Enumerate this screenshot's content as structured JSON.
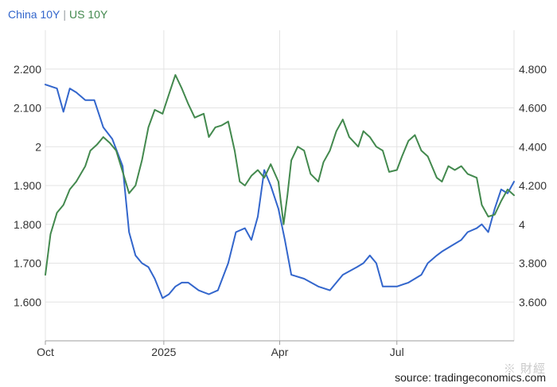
{
  "legend": {
    "china_label": "China 10Y",
    "separator": "|",
    "us_label": "US 10Y"
  },
  "source_text": "source: tradingeconomics.com",
  "watermark_text": "※ 財經",
  "colors": {
    "china": "#3366cc",
    "us": "#43894e",
    "grid": "#e3e3e3",
    "axis": "#9e9e9e"
  },
  "chart_data": {
    "type": "line",
    "title": "",
    "xlabel": "",
    "ylabel_left": "",
    "ylabel_right": "",
    "x_ticks": [
      "Oct",
      "2025",
      "Apr",
      "Jul"
    ],
    "x_tick_dates": [
      "2024-10-01",
      "2025-01-01",
      "2025-04-01",
      "2025-07-01"
    ],
    "x_range": [
      "2024-10-01",
      "2025-09-30"
    ],
    "y_left": {
      "range": [
        1.5,
        2.3
      ],
      "ticks": [
        "1.600",
        "1.700",
        "1.800",
        "1.900",
        "2",
        "2.100",
        "2.200"
      ]
    },
    "y_right": {
      "range": [
        3.4,
        5.0
      ],
      "ticks": [
        "3.600",
        "3.800",
        "4",
        "4.200",
        "4.400",
        "4.600",
        "4.800"
      ]
    },
    "grid": true,
    "legend_position": "top-left",
    "series": [
      {
        "name": "China 10Y",
        "axis": "left",
        "x": [
          "2024-10-01",
          "2024-10-10",
          "2024-10-15",
          "2024-10-20",
          "2024-10-25",
          "2024-11-01",
          "2024-11-08",
          "2024-11-15",
          "2024-11-22",
          "2024-11-30",
          "2024-12-05",
          "2024-12-10",
          "2024-12-15",
          "2024-12-20",
          "2024-12-25",
          "2024-12-31",
          "2025-01-05",
          "2025-01-10",
          "2025-01-15",
          "2025-01-20",
          "2025-01-28",
          "2025-02-05",
          "2025-02-12",
          "2025-02-20",
          "2025-02-26",
          "2025-03-05",
          "2025-03-10",
          "2025-03-15",
          "2025-03-20",
          "2025-03-25",
          "2025-03-31",
          "2025-04-05",
          "2025-04-10",
          "2025-04-20",
          "2025-05-01",
          "2025-05-10",
          "2025-05-15",
          "2025-05-20",
          "2025-05-31",
          "2025-06-05",
          "2025-06-10",
          "2025-06-15",
          "2025-06-20",
          "2025-06-25",
          "2025-07-01",
          "2025-07-10",
          "2025-07-20",
          "2025-07-25",
          "2025-08-01",
          "2025-08-05",
          "2025-08-10",
          "2025-08-15",
          "2025-08-20",
          "2025-08-25",
          "2025-09-01",
          "2025-09-05",
          "2025-09-10",
          "2025-09-15",
          "2025-09-20",
          "2025-09-25",
          "2025-09-30"
        ],
        "values": [
          2.16,
          2.15,
          2.09,
          2.15,
          2.14,
          2.12,
          2.12,
          2.05,
          2.02,
          1.95,
          1.78,
          1.72,
          1.7,
          1.69,
          1.66,
          1.61,
          1.62,
          1.64,
          1.65,
          1.65,
          1.63,
          1.62,
          1.63,
          1.7,
          1.78,
          1.79,
          1.76,
          1.82,
          1.94,
          1.9,
          1.84,
          1.76,
          1.67,
          1.66,
          1.64,
          1.63,
          1.65,
          1.67,
          1.69,
          1.7,
          1.72,
          1.7,
          1.64,
          1.64,
          1.64,
          1.65,
          1.67,
          1.7,
          1.72,
          1.73,
          1.74,
          1.75,
          1.76,
          1.78,
          1.79,
          1.8,
          1.78,
          1.84,
          1.89,
          1.88,
          1.91
        ]
      },
      {
        "name": "US 10Y",
        "axis": "right",
        "x": [
          "2024-10-01",
          "2024-10-05",
          "2024-10-10",
          "2024-10-15",
          "2024-10-20",
          "2024-10-25",
          "2024-11-01",
          "2024-11-05",
          "2024-11-10",
          "2024-11-15",
          "2024-11-20",
          "2024-11-25",
          "2024-12-01",
          "2024-12-05",
          "2024-12-10",
          "2024-12-15",
          "2024-12-20",
          "2024-12-25",
          "2024-12-31",
          "2025-01-05",
          "2025-01-10",
          "2025-01-15",
          "2025-01-20",
          "2025-01-25",
          "2025-02-01",
          "2025-02-05",
          "2025-02-10",
          "2025-02-15",
          "2025-02-20",
          "2025-02-25",
          "2025-03-01",
          "2025-03-05",
          "2025-03-10",
          "2025-03-15",
          "2025-03-20",
          "2025-03-25",
          "2025-03-31",
          "2025-04-04",
          "2025-04-07",
          "2025-04-10",
          "2025-04-15",
          "2025-04-20",
          "2025-04-25",
          "2025-05-01",
          "2025-05-05",
          "2025-05-10",
          "2025-05-15",
          "2025-05-20",
          "2025-05-25",
          "2025-06-01",
          "2025-06-05",
          "2025-06-10",
          "2025-06-15",
          "2025-06-20",
          "2025-06-25",
          "2025-07-01",
          "2025-07-05",
          "2025-07-10",
          "2025-07-15",
          "2025-07-20",
          "2025-07-25",
          "2025-08-01",
          "2025-08-05",
          "2025-08-10",
          "2025-08-15",
          "2025-08-20",
          "2025-08-25",
          "2025-09-01",
          "2025-09-05",
          "2025-09-10",
          "2025-09-15",
          "2025-09-20",
          "2025-09-25",
          "2025-09-30"
        ],
        "values": [
          3.74,
          3.95,
          4.06,
          4.1,
          4.18,
          4.22,
          4.3,
          4.38,
          4.41,
          4.45,
          4.42,
          4.38,
          4.25,
          4.16,
          4.2,
          4.33,
          4.5,
          4.59,
          4.57,
          4.67,
          4.77,
          4.7,
          4.62,
          4.55,
          4.57,
          4.45,
          4.5,
          4.51,
          4.53,
          4.38,
          4.22,
          4.2,
          4.25,
          4.28,
          4.24,
          4.31,
          4.22,
          4.0,
          4.15,
          4.33,
          4.4,
          4.38,
          4.26,
          4.22,
          4.32,
          4.38,
          4.48,
          4.54,
          4.45,
          4.4,
          4.48,
          4.45,
          4.4,
          4.38,
          4.27,
          4.28,
          4.35,
          4.43,
          4.46,
          4.38,
          4.35,
          4.24,
          4.22,
          4.3,
          4.28,
          4.3,
          4.26,
          4.24,
          4.1,
          4.04,
          4.05,
          4.12,
          4.18,
          4.15
        ]
      }
    ]
  }
}
